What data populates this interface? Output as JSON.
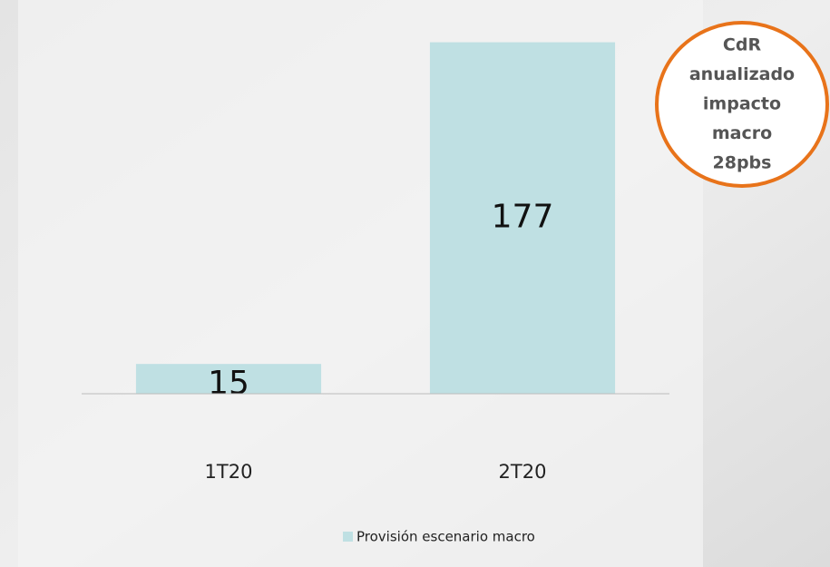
{
  "chart_data": {
    "type": "bar",
    "categories": [
      "1T20",
      "2T20"
    ],
    "series": [
      {
        "name": "Provisión escenario macro",
        "color": "#bfe0e3",
        "values": [
          15,
          177
        ]
      }
    ],
    "ylim": [
      0,
      180
    ],
    "annotation": [
      "CdR",
      "anualizado",
      "impacto",
      "macro",
      "28pbs"
    ]
  }
}
